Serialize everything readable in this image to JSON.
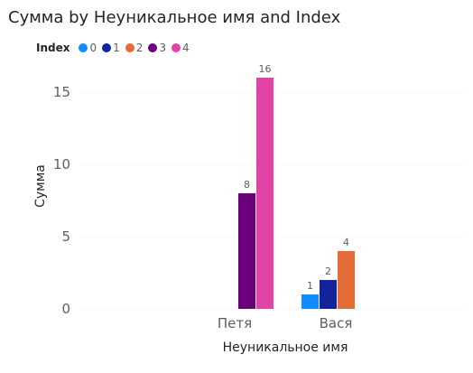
{
  "chart_data": {
    "type": "bar",
    "title": "Сумма by Неуникальное имя and Index",
    "xlabel": "Неуникальное имя",
    "ylabel": "Сумма",
    "legend_title": "Index",
    "legend_position": "top-left",
    "grid": true,
    "ylim": [
      0,
      17
    ],
    "yticks": [
      0,
      5,
      10,
      15
    ],
    "categories": [
      "Петя",
      "Вася"
    ],
    "series": [
      {
        "name": "0",
        "color": "#118dff",
        "values": [
          null,
          1
        ]
      },
      {
        "name": "1",
        "color": "#12239e",
        "values": [
          null,
          2
        ]
      },
      {
        "name": "2",
        "color": "#e66c37",
        "values": [
          null,
          4
        ]
      },
      {
        "name": "3",
        "color": "#6b007b",
        "values": [
          8,
          null
        ]
      },
      {
        "name": "4",
        "color": "#e044a7",
        "values": [
          16,
          null
        ]
      }
    ]
  }
}
